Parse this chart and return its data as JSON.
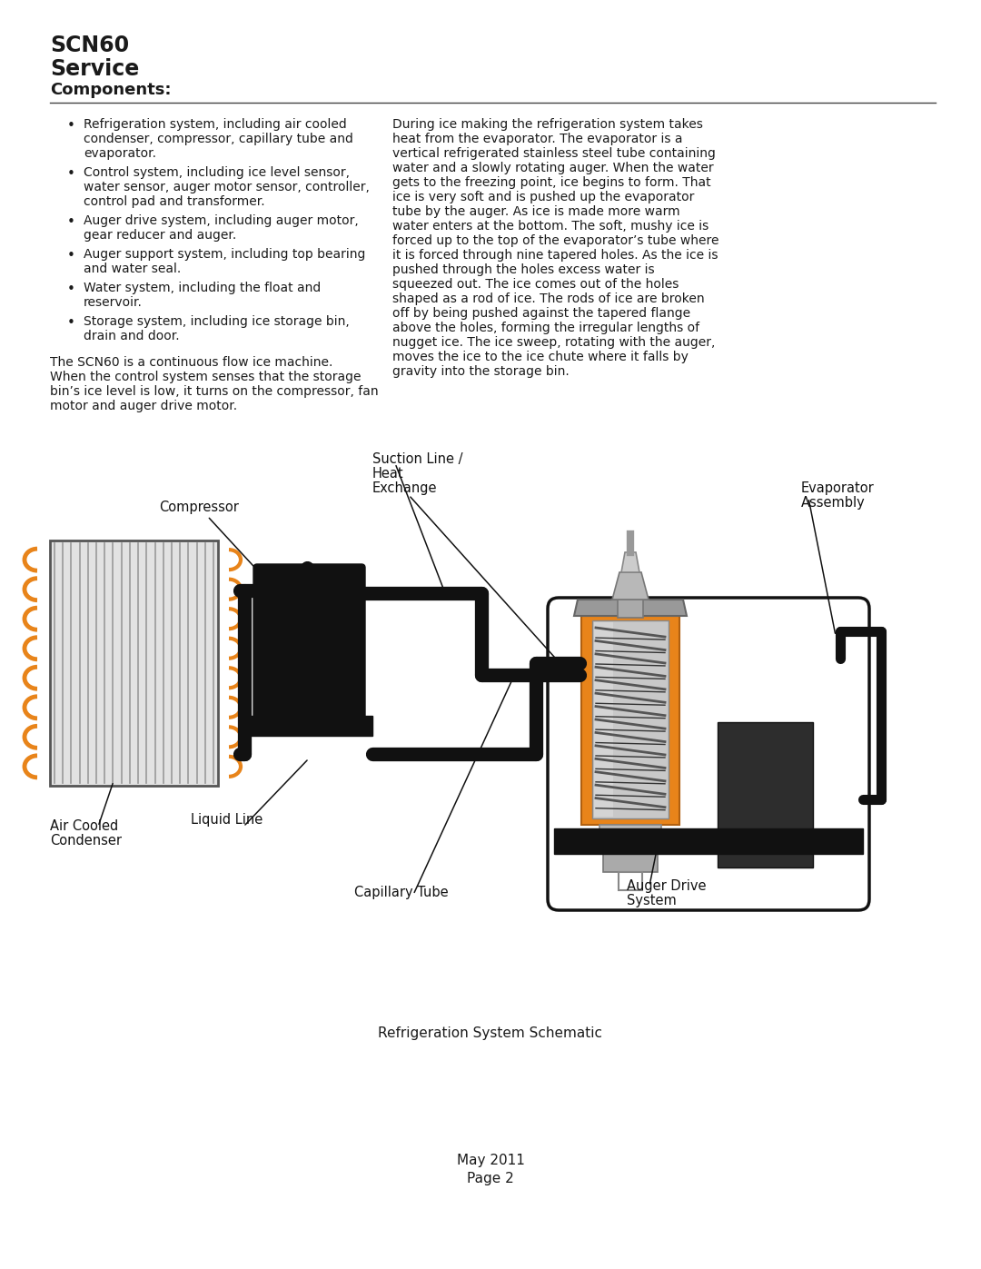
{
  "title_line1": "SCN60",
  "title_line2": "Service",
  "title_line3": "Components:",
  "bullet_points": [
    "Refrigeration system, including air cooled\ncondenser, compressor, capillary tube and\nevaporator.",
    "Control system, including ice level sensor,\nwater sensor, auger motor sensor, controller,\ncontrol pad and transformer.",
    "Auger drive system, including auger motor,\ngear reducer and auger.",
    "Auger support system, including top bearing\nand water seal.",
    "Water system, including the float and\nreservoir.",
    "Storage system, including ice storage bin,\ndrain and door."
  ],
  "left_paragraph": "The SCN60 is a continuous flow ice machine.\nWhen the control system senses that the storage\nbin’s ice level is low, it turns on the compressor, fan\nmotor and auger drive motor.",
  "right_paragraph": "During ice making the refrigeration system takes\nheat from the evaporator. The evaporator is a\nvertical refrigerated stainless steel tube containing\nwater and a slowly rotating auger. When the water\ngets to the freezing point, ice begins to form. That\nice is very soft and is pushed up the evaporator\ntube by the auger. As ice is made more warm\nwater enters at the bottom. The soft, mushy ice is\nforced up to the top of the evaporator’s tube where\nit is forced through nine tapered holes. As the ice is\npushed through the holes excess water is\nsqueezed out. The ice comes out of the holes\nshaped as a rod of ice. The rods of ice are broken\noff by being pushed against the tapered flange\nabove the holes, forming the irregular lengths of\nnugget ice. The ice sweep, rotating with the auger,\nmoves the ice to the ice chute where it falls by\ngravity into the storage bin.",
  "caption": "Refrigeration System Schematic",
  "footer": "May 2011\nPage 2",
  "bg_color": "#ffffff",
  "text_color": "#1a1a1a",
  "orange_color": "#E8841A",
  "pipe_color": "#111111",
  "dark_color": "#1a1a1a",
  "comp_color": "#111111",
  "gray_light": "#d8d8d8",
  "gray_mid": "#aaaaaa",
  "gray_dark": "#666666",
  "silver": "#c0c0c0"
}
